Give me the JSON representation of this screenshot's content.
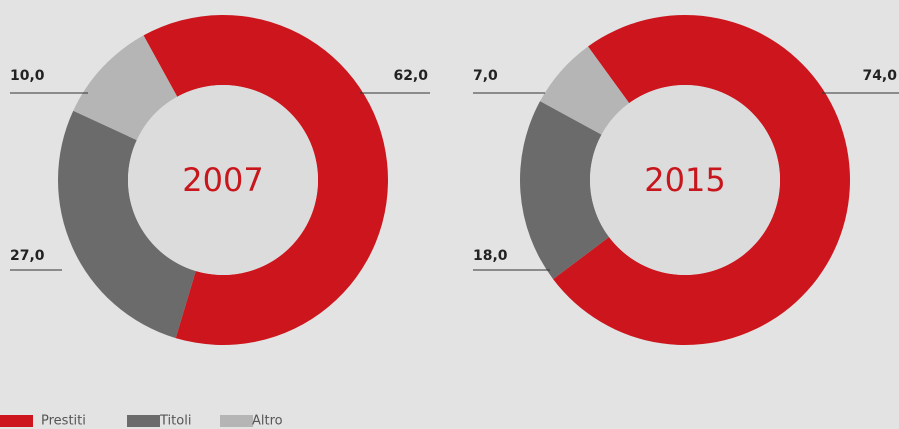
{
  "chart_data": [
    {
      "type": "pie",
      "title": "2007",
      "categories": [
        "Prestiti",
        "Titoli",
        "Altro"
      ],
      "values": [
        62,
        27,
        10
      ],
      "value_labels": [
        "62,0",
        "27,0",
        "10,0"
      ],
      "colors": [
        "#cc151d",
        "#6b6b6b",
        "#b5b5b5"
      ]
    },
    {
      "type": "pie",
      "title": "2015",
      "categories": [
        "Prestiti",
        "Titoli",
        "Altro"
      ],
      "values": [
        74,
        18,
        7
      ],
      "value_labels": [
        "74,0",
        "18,0",
        "7,0"
      ],
      "colors": [
        "#cc151d",
        "#6b6b6b",
        "#b5b5b5"
      ]
    }
  ]
}
